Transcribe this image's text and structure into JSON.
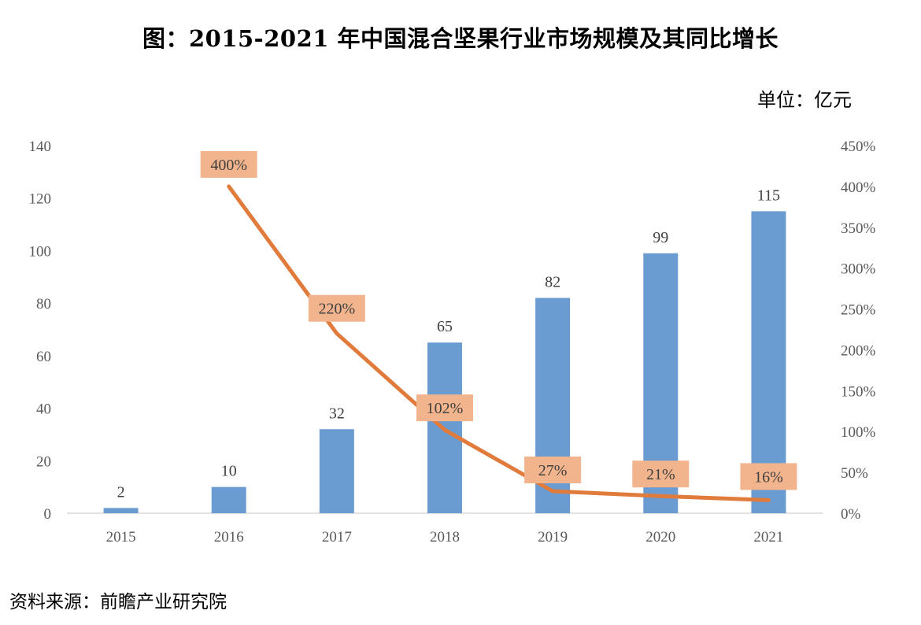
{
  "title": "图：2015-2021 年中国混合坚果行业市场规模及其同比增长",
  "unit": "单位：亿元",
  "source": "资料来源：前瞻产业研究院",
  "colors": {
    "bar": "#6a9bd1",
    "line": "#e07b3c",
    "label_box": "#f2b48c"
  },
  "chart_data": {
    "type": "bar",
    "categories": [
      "2015",
      "2016",
      "2017",
      "2018",
      "2019",
      "2020",
      "2021"
    ],
    "series": [
      {
        "type": "bar",
        "axis": "left",
        "values": [
          2,
          10,
          32,
          65,
          82,
          99,
          115
        ],
        "labels": [
          "2",
          "10",
          "32",
          "65",
          "82",
          "99",
          "115"
        ]
      },
      {
        "type": "line",
        "axis": "right",
        "values": [
          null,
          400,
          220,
          102,
          27,
          21,
          16
        ],
        "labels": [
          "",
          "400%",
          "220%",
          "102%",
          "27%",
          "21%",
          "16%"
        ]
      }
    ],
    "y_left": {
      "ylim": [
        0,
        140
      ],
      "ticks": [
        "0",
        "20",
        "40",
        "60",
        "80",
        "100",
        "120",
        "140"
      ]
    },
    "y_right": {
      "ylim": [
        0,
        450
      ],
      "ticks": [
        "0%",
        "50%",
        "100%",
        "150%",
        "200%",
        "250%",
        "300%",
        "350%",
        "400%",
        "450%"
      ]
    },
    "grid": false,
    "legend": "none"
  }
}
